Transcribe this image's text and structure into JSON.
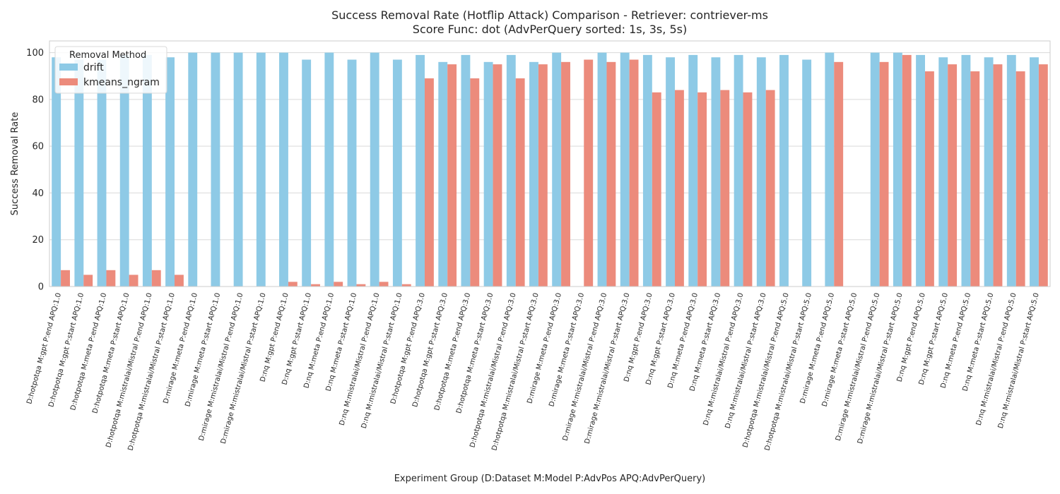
{
  "chart_data": {
    "type": "bar",
    "title": "Success Removal Rate (Hotflip Attack) Comparison - Retriever: contriever-ms",
    "subtitle": "Score Func: dot (AdvPerQuery sorted: 1s, 3s, 5s)",
    "xlabel": "Experiment Group (D:Dataset M:Model P:AdvPos APQ:AdvPerQuery)",
    "ylabel": "Success Removal Rate",
    "ylim": [
      0,
      105
    ],
    "yticks": [
      0,
      20,
      40,
      60,
      80,
      100
    ],
    "grid": true,
    "legend": {
      "title": "Removal Method",
      "placement": "top-left",
      "entries": [
        "drift",
        "kmeans_ngram"
      ]
    },
    "colors": {
      "drift": "#8ecae6",
      "kmeans_ngram": "#ec8b7c"
    },
    "categories": [
      "D:hotpotqa M:gpt P:end APQ:1.0",
      "D:hotpotqa M:gpt P:start APQ:1.0",
      "D:hotpotqa M:meta P:end APQ:1.0",
      "D:hotpotqa M:meta P:start APQ:1.0",
      "D:hotpotqa M:mistralai/Mistral P:end APQ:1.0",
      "D:hotpotqa M:mistralai/Mistral P:start APQ:1.0",
      "D:mirage M:meta P:end APQ:1.0",
      "D:mirage M:meta P:start APQ:1.0",
      "D:mirage M:mistralai/Mistral P:end APQ:1.0",
      "D:mirage M:mistralai/Mistral P:start APQ:1.0",
      "D:nq M:gpt P:end APQ:1.0",
      "D:nq M:gpt P:start APQ:1.0",
      "D:nq M:meta P:end APQ:1.0",
      "D:nq M:meta P:start APQ:1.0",
      "D:nq M:mistralai/Mistral P:end APQ:1.0",
      "D:nq M:mistralai/Mistral P:start APQ:1.0",
      "D:hotpotqa M:gpt P:end APQ:3.0",
      "D:hotpotqa M:gpt P:start APQ:3.0",
      "D:hotpotqa M:meta P:end APQ:3.0",
      "D:hotpotqa M:meta P:start APQ:3.0",
      "D:hotpotqa M:mistralai/Mistral P:end APQ:3.0",
      "D:hotpotqa M:mistralai/Mistral P:start APQ:3.0",
      "D:mirage M:meta P:end APQ:3.0",
      "D:mirage M:meta P:start APQ:3.0",
      "D:mirage M:mistralai/Mistral P:end APQ:3.0",
      "D:mirage M:mistralai/Mistral P:start APQ:3.0",
      "D:nq M:gpt P:end APQ:3.0",
      "D:nq M:gpt P:start APQ:3.0",
      "D:nq M:meta P:end APQ:3.0",
      "D:nq M:meta P:start APQ:3.0",
      "D:nq M:mistralai/Mistral P:end APQ:3.0",
      "D:nq M:mistralai/Mistral P:start APQ:3.0",
      "D:hotpotqa M:mistralai/Mistral P:end APQ:5.0",
      "D:hotpotqa M:mistralai/Mistral P:start APQ:5.0",
      "D:mirage M:meta P:end APQ:5.0",
      "D:mirage M:meta P:start APQ:5.0",
      "D:mirage M:mistralai/Mistral P:end APQ:5.0",
      "D:mirage M:mistralai/Mistral P:start APQ:5.0",
      "D:nq M:gpt P:end APQ:5.0",
      "D:nq M:gpt P:start APQ:5.0",
      "D:nq M:meta P:end APQ:5.0",
      "D:nq M:meta P:start APQ:5.0",
      "D:nq M:mistralai/Mistral P:end APQ:5.0",
      "D:nq M:mistralai/Mistral P:start APQ:5.0"
    ],
    "series": [
      {
        "name": "drift",
        "values": [
          98,
          97,
          97,
          99,
          99,
          98,
          100,
          100,
          100,
          100,
          100,
          97,
          100,
          97,
          100,
          97,
          99,
          96,
          99,
          96,
          99,
          96,
          100,
          0,
          100,
          100,
          99,
          98,
          99,
          98,
          99,
          98,
          99,
          97,
          100,
          0,
          100,
          100,
          99,
          98,
          99,
          98,
          99,
          98
        ]
      },
      {
        "name": "kmeans_ngram",
        "values": [
          7,
          5,
          7,
          5,
          7,
          5,
          0,
          0,
          0,
          0,
          2,
          1,
          2,
          1,
          2,
          1,
          89,
          95,
          89,
          95,
          89,
          95,
          96,
          97,
          96,
          97,
          83,
          84,
          83,
          84,
          83,
          84,
          0,
          0,
          96,
          0,
          96,
          99,
          92,
          95,
          92,
          95,
          92,
          95
        ]
      }
    ]
  }
}
